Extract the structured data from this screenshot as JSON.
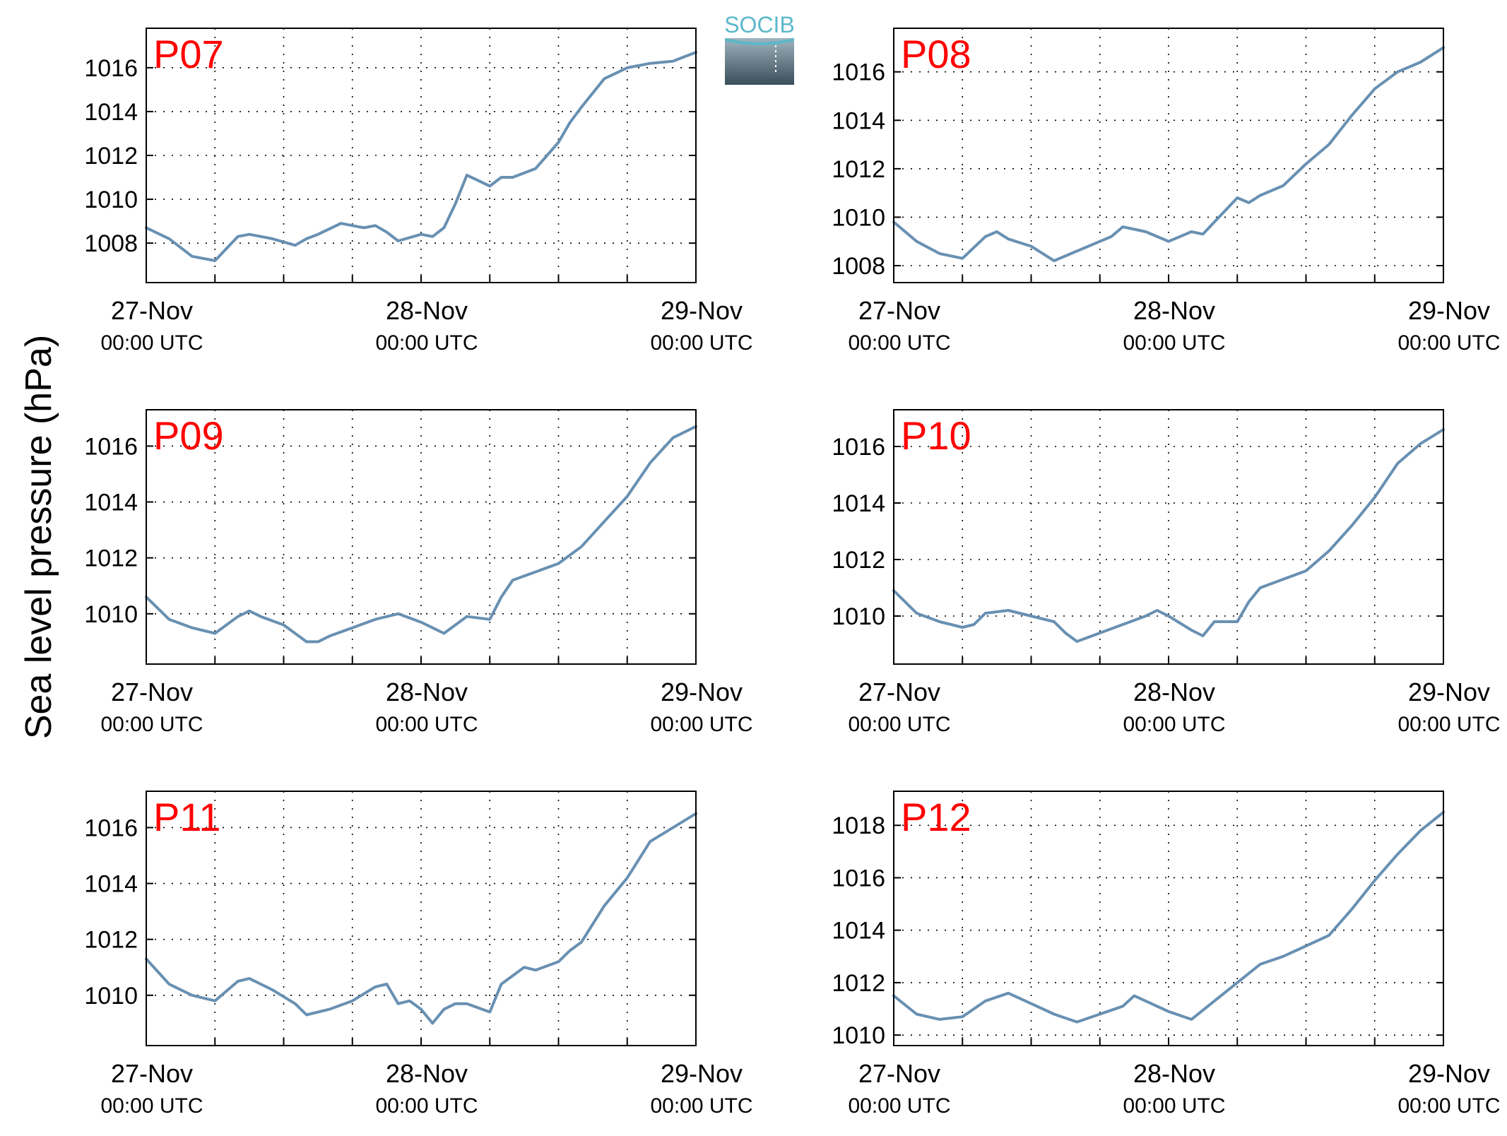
{
  "figure": {
    "ylabel": "Sea level pressure (hPa)",
    "logo_text": "SOCIB",
    "line_color": "#6890b2",
    "label_color": "#ff0000"
  },
  "chart_data": [
    {
      "type": "line",
      "name": "P07",
      "x_ticks": [
        {
          "date": "27-Nov",
          "time": "00:00 UTC"
        },
        {
          "date": "28-Nov",
          "time": "00:00 UTC"
        },
        {
          "date": "29-Nov",
          "time": "00:00 UTC"
        }
      ],
      "xlim_hours": [
        0,
        48
      ],
      "ylim": [
        1006.2,
        1017.8
      ],
      "yticks": [
        1008,
        1010,
        1012,
        1014,
        1016
      ],
      "grid": true,
      "x_hours": [
        0,
        2,
        4,
        6,
        8,
        9,
        11,
        13,
        14,
        15,
        17,
        19,
        20,
        21,
        22,
        24,
        25,
        26,
        27,
        28,
        30,
        31,
        32,
        34,
        35,
        36,
        37,
        38,
        40,
        42,
        44,
        46,
        47,
        48
      ],
      "values": [
        1008.7,
        1008.2,
        1007.4,
        1007.2,
        1008.3,
        1008.4,
        1008.2,
        1007.9,
        1008.2,
        1008.4,
        1008.9,
        1008.7,
        1008.8,
        1008.5,
        1008.1,
        1008.4,
        1008.3,
        1008.7,
        1009.8,
        1011.1,
        1010.6,
        1011.0,
        1011.0,
        1011.4,
        1012.0,
        1012.6,
        1013.5,
        1014.2,
        1015.5,
        1016.0,
        1016.2,
        1016.3,
        1016.5,
        1016.7
      ]
    },
    {
      "type": "line",
      "name": "P08",
      "x_ticks": [
        {
          "date": "27-Nov",
          "time": "00:00 UTC"
        },
        {
          "date": "28-Nov",
          "time": "00:00 UTC"
        },
        {
          "date": "29-Nov",
          "time": "00:00 UTC"
        }
      ],
      "xlim_hours": [
        0,
        48
      ],
      "ylim": [
        1007.3,
        1017.8
      ],
      "yticks": [
        1008,
        1010,
        1012,
        1014,
        1016
      ],
      "grid": true,
      "x_hours": [
        0,
        2,
        4,
        6,
        8,
        9,
        10,
        12,
        14,
        16,
        18,
        19,
        20,
        22,
        24,
        26,
        27,
        28,
        30,
        31,
        32,
        34,
        36,
        38,
        40,
        42,
        44,
        46,
        48
      ],
      "values": [
        1009.8,
        1009.0,
        1008.5,
        1008.3,
        1009.2,
        1009.4,
        1009.1,
        1008.8,
        1008.2,
        1008.6,
        1009.0,
        1009.2,
        1009.6,
        1009.4,
        1009.0,
        1009.4,
        1009.3,
        1009.8,
        1010.8,
        1010.6,
        1010.9,
        1011.3,
        1012.2,
        1013.0,
        1014.2,
        1015.3,
        1016.0,
        1016.4,
        1017.0
      ]
    },
    {
      "type": "line",
      "name": "P09",
      "x_ticks": [
        {
          "date": "27-Nov",
          "time": "00:00 UTC"
        },
        {
          "date": "28-Nov",
          "time": "00:00 UTC"
        },
        {
          "date": "29-Nov",
          "time": "00:00 UTC"
        }
      ],
      "xlim_hours": [
        0,
        48
      ],
      "ylim": [
        1008.2,
        1017.3
      ],
      "yticks": [
        1010,
        1012,
        1014,
        1016
      ],
      "grid": true,
      "x_hours": [
        0,
        2,
        4,
        6,
        8,
        9,
        10,
        12,
        14,
        15,
        16,
        18,
        20,
        22,
        24,
        26,
        28,
        30,
        31,
        32,
        34,
        36,
        38,
        40,
        42,
        44,
        46,
        48
      ],
      "values": [
        1010.6,
        1009.8,
        1009.5,
        1009.3,
        1009.9,
        1010.1,
        1009.9,
        1009.6,
        1009.0,
        1009.0,
        1009.2,
        1009.5,
        1009.8,
        1010.0,
        1009.7,
        1009.3,
        1009.9,
        1009.8,
        1010.6,
        1011.2,
        1011.5,
        1011.8,
        1012.4,
        1013.3,
        1014.2,
        1015.4,
        1016.3,
        1016.7
      ]
    },
    {
      "type": "line",
      "name": "P10",
      "x_ticks": [
        {
          "date": "27-Nov",
          "time": "00:00 UTC"
        },
        {
          "date": "28-Nov",
          "time": "00:00 UTC"
        },
        {
          "date": "29-Nov",
          "time": "00:00 UTC"
        }
      ],
      "xlim_hours": [
        0,
        48
      ],
      "ylim": [
        1008.3,
        1017.3
      ],
      "yticks": [
        1010,
        1012,
        1014,
        1016
      ],
      "grid": true,
      "x_hours": [
        0,
        2,
        4,
        6,
        7,
        8,
        10,
        12,
        14,
        15,
        16,
        18,
        20,
        22,
        23,
        24,
        26,
        27,
        28,
        30,
        31,
        32,
        34,
        36,
        38,
        40,
        42,
        44,
        46,
        48
      ],
      "values": [
        1010.9,
        1010.1,
        1009.8,
        1009.6,
        1009.7,
        1010.1,
        1010.2,
        1010.0,
        1009.8,
        1009.4,
        1009.1,
        1009.4,
        1009.7,
        1010.0,
        1010.2,
        1010.0,
        1009.5,
        1009.3,
        1009.8,
        1009.8,
        1010.5,
        1011.0,
        1011.3,
        1011.6,
        1012.3,
        1013.2,
        1014.2,
        1015.4,
        1016.1,
        1016.6
      ]
    },
    {
      "type": "line",
      "name": "P11",
      "x_ticks": [
        {
          "date": "27-Nov",
          "time": "00:00 UTC"
        },
        {
          "date": "28-Nov",
          "time": "00:00 UTC"
        },
        {
          "date": "29-Nov",
          "time": "00:00 UTC"
        }
      ],
      "xlim_hours": [
        0,
        48
      ],
      "ylim": [
        1008.2,
        1017.3
      ],
      "yticks": [
        1010,
        1012,
        1014,
        1016
      ],
      "grid": true,
      "x_hours": [
        0,
        2,
        4,
        6,
        8,
        9,
        11,
        13,
        14,
        16,
        18,
        20,
        21,
        22,
        23,
        24,
        25,
        26,
        27,
        28,
        30,
        31,
        32,
        33,
        34,
        36,
        37,
        38,
        40,
        42,
        44,
        46,
        48
      ],
      "values": [
        1011.3,
        1010.4,
        1010.0,
        1009.8,
        1010.5,
        1010.6,
        1010.2,
        1009.7,
        1009.3,
        1009.5,
        1009.8,
        1010.3,
        1010.4,
        1009.7,
        1009.8,
        1009.5,
        1009.0,
        1009.5,
        1009.7,
        1009.7,
        1009.4,
        1010.4,
        1010.7,
        1011.0,
        1010.9,
        1011.2,
        1011.6,
        1011.9,
        1013.2,
        1014.2,
        1015.5,
        1016.0,
        1016.5
      ]
    },
    {
      "type": "line",
      "name": "P12",
      "x_ticks": [
        {
          "date": "27-Nov",
          "time": "00:00 UTC"
        },
        {
          "date": "28-Nov",
          "time": "00:00 UTC"
        },
        {
          "date": "29-Nov",
          "time": "00:00 UTC"
        }
      ],
      "xlim_hours": [
        0,
        48
      ],
      "ylim": [
        1009.6,
        1019.3
      ],
      "yticks": [
        1010,
        1012,
        1014,
        1016,
        1018
      ],
      "grid": true,
      "x_hours": [
        0,
        2,
        4,
        6,
        8,
        10,
        12,
        14,
        16,
        18,
        20,
        21,
        22,
        24,
        26,
        28,
        30,
        32,
        34,
        36,
        38,
        40,
        42,
        44,
        46,
        48
      ],
      "values": [
        1011.5,
        1010.8,
        1010.6,
        1010.7,
        1011.3,
        1011.6,
        1011.2,
        1010.8,
        1010.5,
        1010.8,
        1011.1,
        1011.5,
        1011.3,
        1010.9,
        1010.6,
        1011.3,
        1012.0,
        1012.7,
        1013.0,
        1013.4,
        1013.8,
        1014.8,
        1015.9,
        1016.9,
        1017.8,
        1018.5
      ]
    }
  ]
}
